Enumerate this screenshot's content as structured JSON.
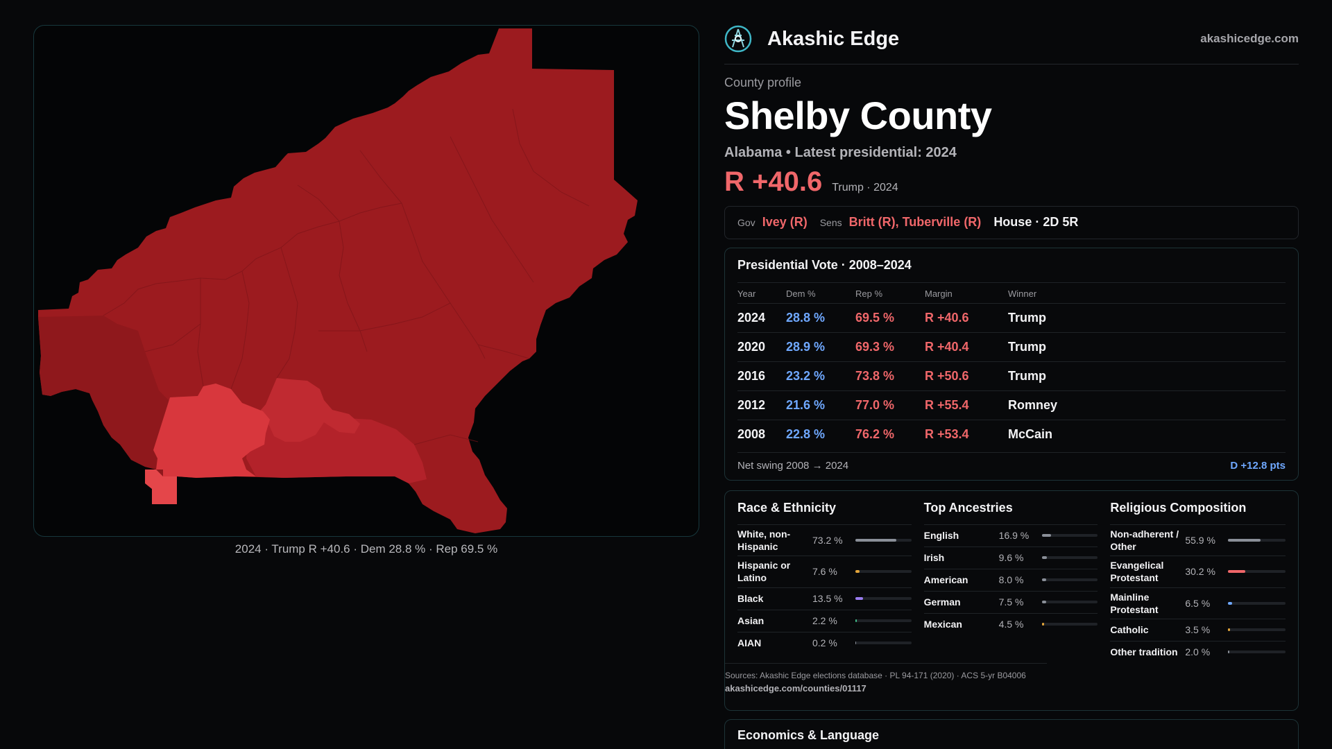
{
  "brand": {
    "name": "Akashic Edge",
    "url": "akashicedge.com"
  },
  "profile": {
    "eyebrow": "County profile",
    "county": "Shelby County",
    "subline": "Alabama • Latest presidential: 2024",
    "margin": "R +40.6",
    "margin_note": "Trump · 2024"
  },
  "officials": {
    "gov_label": "Gov",
    "gov": "Ivey (R)",
    "sens_label": "Sens",
    "sens": "Britt (R), Tuberville (R)",
    "house": "House · 2D 5R"
  },
  "votes": {
    "title": "Presidential Vote · 2008–2024",
    "headers": {
      "year": "Year",
      "dem": "Dem %",
      "rep": "Rep %",
      "margin": "Margin",
      "winner": "Winner"
    },
    "rows": [
      {
        "year": "2024",
        "dem": "28.8 %",
        "rep": "69.5 %",
        "margin": "R +40.6",
        "winner": "Trump"
      },
      {
        "year": "2020",
        "dem": "28.9 %",
        "rep": "69.3 %",
        "margin": "R +40.4",
        "winner": "Trump"
      },
      {
        "year": "2016",
        "dem": "23.2 %",
        "rep": "73.8 %",
        "margin": "R +50.6",
        "winner": "Trump"
      },
      {
        "year": "2012",
        "dem": "21.6 %",
        "rep": "77.0 %",
        "margin": "R +55.4",
        "winner": "Romney"
      },
      {
        "year": "2008",
        "dem": "22.8 %",
        "rep": "76.2 %",
        "margin": "R +53.4",
        "winner": "McCain"
      }
    ],
    "swing_label": "Net swing 2008 → 2024",
    "swing_value": "D +12.8 pts"
  },
  "race": {
    "title": "Race & Ethnicity",
    "items": [
      {
        "label": "White, non-Hispanic",
        "value": "73.2 %",
        "pct": 73.2,
        "color": "#8a8f98"
      },
      {
        "label": "Hispanic or Latino",
        "value": "7.6 %",
        "pct": 7.6,
        "color": "#e3a53a"
      },
      {
        "label": "Black",
        "value": "13.5 %",
        "pct": 13.5,
        "color": "#9a7cf0"
      },
      {
        "label": "Asian",
        "value": "2.2 %",
        "pct": 2.2,
        "color": "#3fbf8a"
      },
      {
        "label": "AIAN",
        "value": "0.2 %",
        "pct": 0.2,
        "color": "#8a8f98"
      }
    ]
  },
  "ancestry": {
    "title": "Top Ancestries",
    "items": [
      {
        "label": "English",
        "value": "16.9 %",
        "pct": 16.9,
        "color": "#8a8f98"
      },
      {
        "label": "Irish",
        "value": "9.6 %",
        "pct": 9.6,
        "color": "#8a8f98"
      },
      {
        "label": "American",
        "value": "8.0 %",
        "pct": 8.0,
        "color": "#8a8f98"
      },
      {
        "label": "German",
        "value": "7.5 %",
        "pct": 7.5,
        "color": "#8a8f98"
      },
      {
        "label": "Mexican",
        "value": "4.5 %",
        "pct": 4.5,
        "color": "#e3a53a"
      }
    ]
  },
  "religion": {
    "title": "Religious Composition",
    "items": [
      {
        "label": "Non-adherent / Other",
        "value": "55.9 %",
        "pct": 55.9,
        "color": "#8a8f98"
      },
      {
        "label": "Evangelical Protestant",
        "value": "30.2 %",
        "pct": 30.2,
        "color": "#f0676a"
      },
      {
        "label": "Mainline Protestant",
        "value": "6.5 %",
        "pct": 6.5,
        "color": "#6fa8ff"
      },
      {
        "label": "Catholic",
        "value": "3.5 %",
        "pct": 3.5,
        "color": "#e3a53a"
      },
      {
        "label": "Other tradition",
        "value": "2.0 %",
        "pct": 2.0,
        "color": "#8a8f98"
      }
    ]
  },
  "sources": {
    "text": "Sources: Akashic Edge elections database · PL 94-171 (2020) · ACS 5-yr B04006",
    "url": "akashicedge.com/counties/01117"
  },
  "economics_title": "Economics & Language",
  "map": {
    "caption": "2024 · Trump R +40.6 · Dem 28.8 % · Rep 69.5 %",
    "colors": {
      "dark": "#9c1b1f",
      "mid": "#b3222a",
      "light": "#d8373d",
      "lightest": "#e4464a"
    }
  }
}
